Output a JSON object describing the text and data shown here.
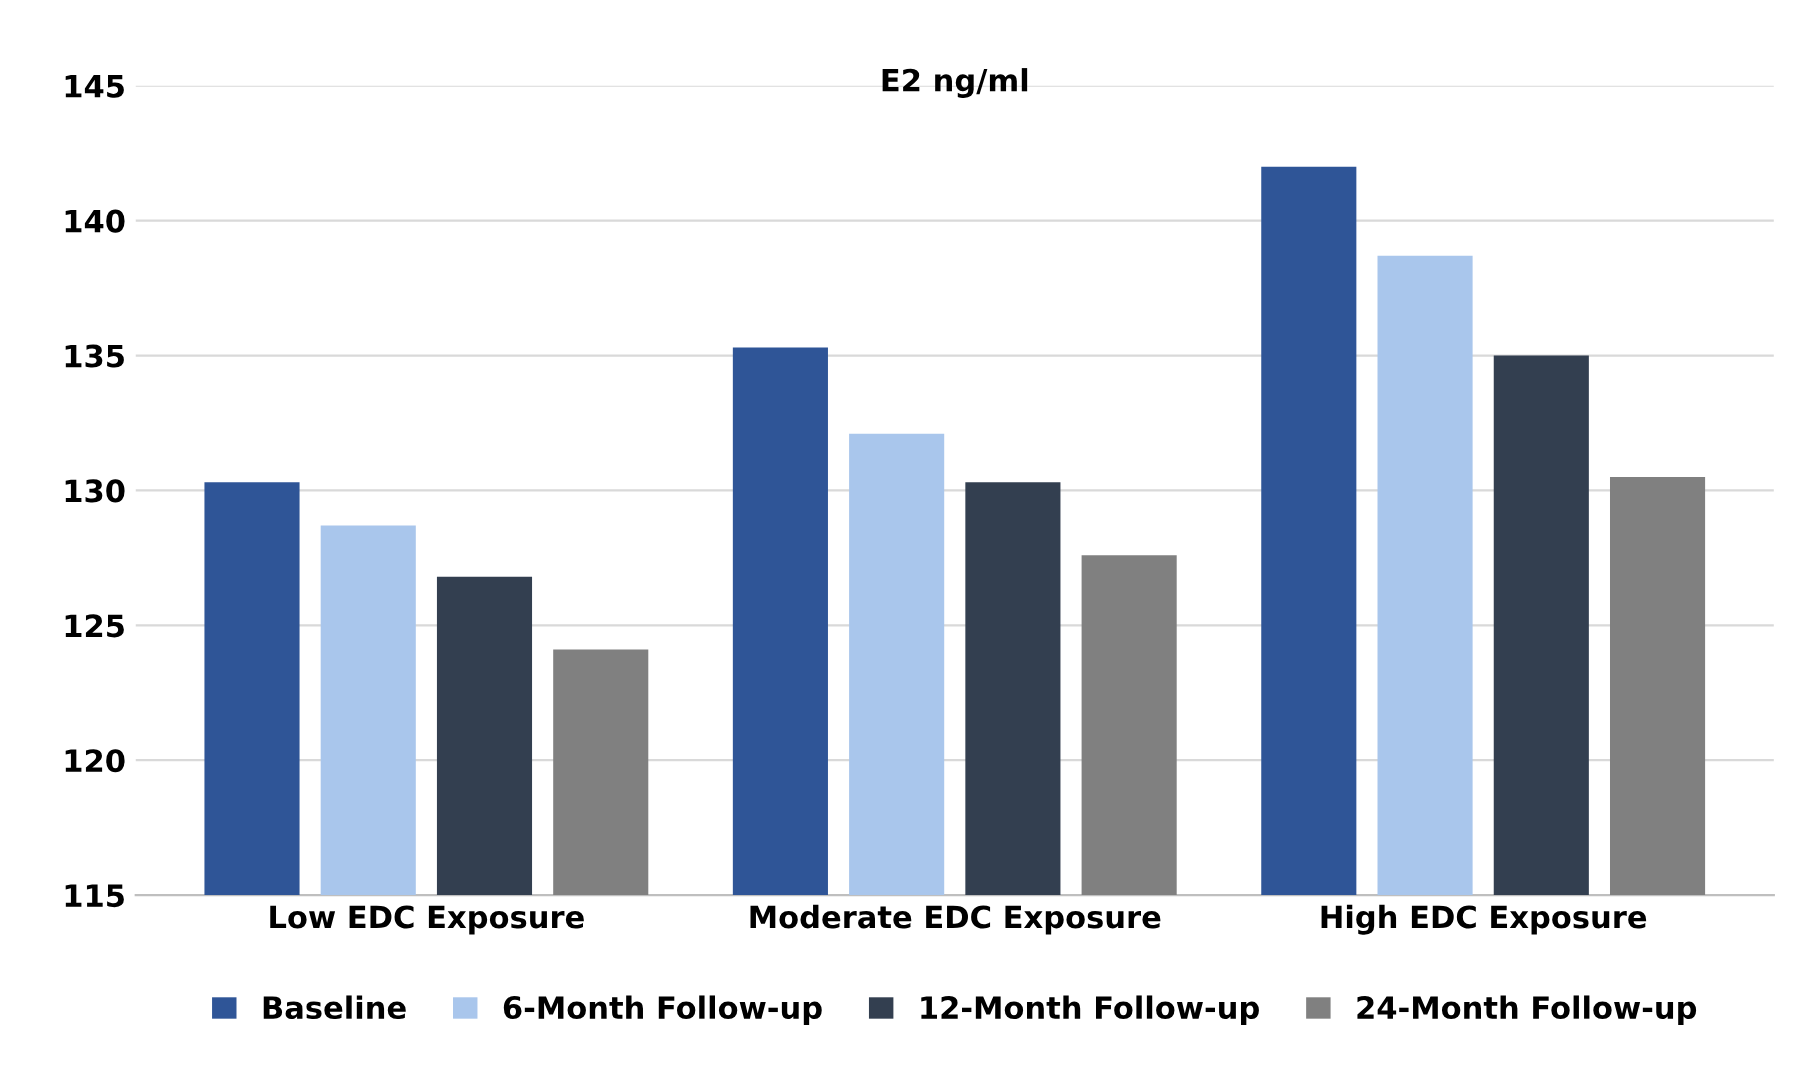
{
  "chart_data": {
    "type": "bar",
    "title": "E2 ng/ml",
    "categories": [
      "Low EDC Exposure",
      "Moderate EDC Exposure",
      "High EDC Exposure"
    ],
    "series": [
      {
        "name": "Baseline",
        "color": "#2f5597",
        "values": [
          130.3,
          135.3,
          142.0
        ]
      },
      {
        "name": "6-Month Follow-up",
        "color": "#a9c6ec",
        "values": [
          128.7,
          132.1,
          138.7
        ]
      },
      {
        "name": "12-Month Follow-up",
        "color": "#333f50",
        "values": [
          126.8,
          130.3,
          135.0
        ]
      },
      {
        "name": "24-Month Follow-up",
        "color": "#808080",
        "values": [
          124.1,
          127.6,
          130.5
        ]
      }
    ],
    "ylim": [
      115,
      145
    ],
    "yticks": [
      115,
      120,
      125,
      130,
      135,
      140,
      145
    ],
    "grid": "y",
    "legend": "bottom"
  }
}
